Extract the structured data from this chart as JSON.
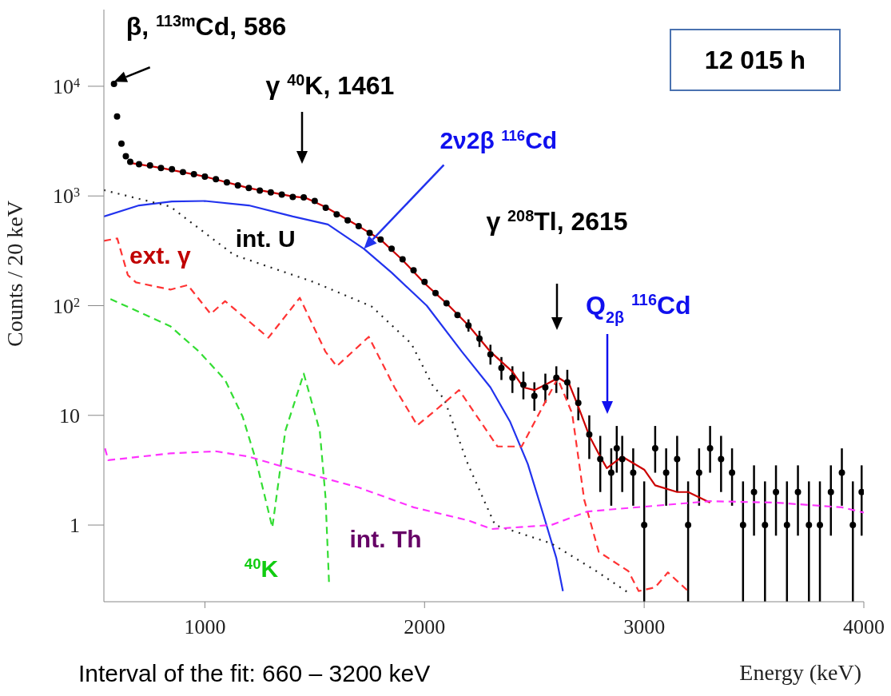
{
  "chart_data": {
    "type": "line",
    "xlabel": "Energy (keV)",
    "ylabel": "Counts / 20 keV",
    "log": true,
    "xlim": [
      540,
      4000
    ],
    "ylim": [
      0.2,
      50000
    ],
    "xticks": [
      1000,
      2000,
      3000,
      4000
    ],
    "yticks": [
      1,
      10,
      {
        "value": 100,
        "label": "10$^{2}$"
      },
      {
        "value": 1000,
        "label": "10$^{3}$"
      },
      {
        "value": 10000,
        "label": "10$^{4}$"
      }
    ],
    "annotations": [
      {
        "text": "β, $^{113m}$Cd, 586",
        "x": 586,
        "y": 11000
      },
      "γ $^{40}$K, 1461",
      "γ $^{208}$Tl, 2615",
      "Q$_{2β}$ $^{116}$Cd",
      "12 015 h",
      "Interval of the fit: 660 – 3200 keV"
    ],
    "series": [
      {
        "type": "scatter",
        "color": "#000000",
        "marker": "circle",
        "x": [
          586,
          600,
          620,
          640,
          660,
          700,
          750,
          800,
          850,
          900,
          950,
          1000,
          1050,
          1100,
          1150,
          1200,
          1250,
          1300,
          1350,
          1400,
          1450,
          1500,
          1550,
          1600,
          1650,
          1700,
          1750,
          1800,
          1850,
          1900,
          1950,
          2000,
          2050,
          2100,
          2150,
          2200,
          2250,
          2300,
          2350,
          2400,
          2450,
          2500,
          2550,
          2600,
          2650,
          2700,
          2750,
          2800,
          2850,
          2875,
          2900,
          2950,
          3000,
          3050,
          3100,
          3150,
          3200,
          3250,
          3300,
          3350,
          3400,
          3450,
          3500,
          3550,
          3600,
          3650,
          3700,
          3750,
          3800,
          3850,
          3900,
          3950,
          3990
        ],
        "values": [
          10500,
          5300,
          3000,
          2300,
          2050,
          1950,
          1900,
          1800,
          1750,
          1650,
          1580,
          1500,
          1420,
          1330,
          1250,
          1180,
          1120,
          1080,
          1030,
          980,
          970,
          900,
          780,
          680,
          600,
          530,
          460,
          400,
          330,
          265,
          210,
          165,
          130,
          105,
          82,
          66,
          50,
          36,
          27,
          22,
          19,
          15,
          18,
          22,
          20,
          13,
          6.7,
          4,
          3,
          5,
          4,
          3,
          1,
          5,
          3,
          4,
          1,
          3,
          5,
          4,
          3,
          1,
          2,
          1,
          2,
          1,
          2,
          1,
          1,
          2,
          3,
          1,
          2
        ],
        "errors": [
          null,
          null,
          null,
          null,
          null,
          null,
          null,
          null,
          null,
          null,
          null,
          null,
          null,
          null,
          null,
          null,
          null,
          null,
          null,
          null,
          null,
          null,
          null,
          null,
          null,
          null,
          null,
          null,
          null,
          null,
          null,
          null,
          null,
          null,
          null,
          [
            58,
            75
          ],
          [
            42,
            59
          ],
          [
            29,
            44
          ],
          [
            21,
            34
          ],
          [
            16,
            28
          ],
          [
            14,
            25
          ],
          [
            11,
            20
          ],
          [
            13,
            24
          ],
          [
            16,
            28
          ],
          [
            14,
            26
          ],
          [
            9,
            18
          ],
          [
            4,
            10
          ],
          [
            2,
            6.5
          ],
          [
            1.5,
            5
          ],
          [
            3,
            8
          ],
          [
            2,
            6.5
          ],
          [
            1.5,
            5
          ],
          [
            0.2,
            2.5
          ],
          [
            3,
            8
          ],
          [
            1.5,
            5
          ],
          [
            2,
            6.5
          ],
          [
            0.2,
            2.5
          ],
          [
            1.5,
            5
          ],
          [
            3,
            8
          ],
          [
            2,
            6.5
          ],
          [
            1.5,
            5
          ],
          [
            0.2,
            2.5
          ],
          [
            0.8,
            3.5
          ],
          [
            0.2,
            2.5
          ],
          [
            0.8,
            3.5
          ],
          [
            0.2,
            2.5
          ],
          [
            0.8,
            3.5
          ],
          [
            0.2,
            2.5
          ],
          [
            0.2,
            2.5
          ],
          [
            0.8,
            3.5
          ],
          [
            1.5,
            5
          ],
          [
            0.2,
            2.5
          ],
          [
            0.8,
            3.5
          ]
        ]
      },
      {
        "color": "#cc0000",
        "line_style": "solid",
        "marker": "none",
        "x": [
          660,
          800,
          1000,
          1200,
          1400,
          1460,
          1550,
          1700,
          1800,
          1900,
          2000,
          2100,
          2200,
          2300,
          2400,
          2450,
          2500,
          2550,
          2610,
          2660,
          2700,
          2750,
          2800,
          2830,
          2900,
          3000,
          3050,
          3150,
          3200,
          3300
        ],
        "values": [
          2000,
          1800,
          1500,
          1180,
          990,
          960,
          790,
          530,
          400,
          260,
          160,
          105,
          66,
          38,
          25,
          18,
          17,
          19,
          22,
          19,
          12,
          6.5,
          4.2,
          3.3,
          4.2,
          3.2,
          2.3,
          2,
          2,
          1.6
        ]
      },
      {
        "name": "2ν2β $^{116}$Cd",
        "color": "#2233ee",
        "line_style": "solid",
        "marker": "none",
        "x": [
          540,
          700,
          850,
          1000,
          1200,
          1400,
          1560,
          1724,
          1850,
          2010,
          2170,
          2300,
          2390,
          2470,
          2540,
          2600,
          2630
        ],
        "values": [
          650,
          820,
          890,
          900,
          820,
          650,
          550,
          330,
          200,
          100,
          38,
          18,
          8.7,
          3.6,
          1.26,
          0.5,
          0.25
        ]
      },
      {
        "name": "int. U",
        "color": "#222222",
        "line_style": "dotted",
        "marker": "none",
        "x": [
          540,
          842,
          1132,
          1500,
          1760,
          1940,
          2035,
          2090,
          2197,
          2321,
          2577,
          2782,
          2930
        ],
        "values": [
          1130,
          800,
          290,
          163,
          98,
          45,
          19,
          14,
          3.6,
          1,
          0.68,
          0.38,
          0.24
        ]
      },
      {
        "name": "ext. γ",
        "color": "#ff3333",
        "line_style": "dashed",
        "marker": "none",
        "x": [
          540,
          601,
          649,
          686,
          843,
          922,
          1026,
          1092,
          1289,
          1432,
          1549,
          1600,
          1746,
          1863,
          1967,
          2086,
          2157,
          2332,
          2442,
          2606,
          2672,
          2727,
          2793,
          2928,
          2975,
          3050,
          3108,
          3200
        ],
        "values": [
          390,
          410,
          190,
          163,
          140,
          154,
          84,
          110,
          51,
          118,
          38,
          28,
          52,
          18,
          8.1,
          12.8,
          17,
          5.2,
          5.2,
          21.7,
          10.4,
          1.7,
          0.57,
          0.38,
          0.25,
          0.27,
          0.37,
          0.25
        ]
      },
      {
        "name": "$^{40}$K",
        "color": "#33dd33",
        "line_style": "dashed",
        "marker": "none",
        "x": [
          570,
          842,
          974,
          1092,
          1172,
          1234,
          1307,
          1366,
          1450,
          1523,
          1549,
          1565
        ],
        "values": [
          115,
          65,
          38,
          21,
          9.7,
          3.8,
          0.95,
          7.2,
          24,
          7.2,
          1.8,
          0.3
        ]
      },
      {
        "name": "int. Th",
        "color": "#ff33ff",
        "line_style": "dashed",
        "marker": "none",
        "x": [
          545,
          560,
          842,
          1050,
          1200,
          1400,
          1700,
          1950,
          2200,
          2306,
          2577,
          2742,
          3000,
          3300,
          3600,
          3900,
          4000
        ],
        "values": [
          5,
          3.9,
          4.5,
          4.7,
          4.2,
          3.2,
          2.2,
          1.45,
          1.1,
          0.92,
          1,
          1.33,
          1.47,
          1.65,
          1.6,
          1.45,
          1.3
        ]
      }
    ]
  }
}
